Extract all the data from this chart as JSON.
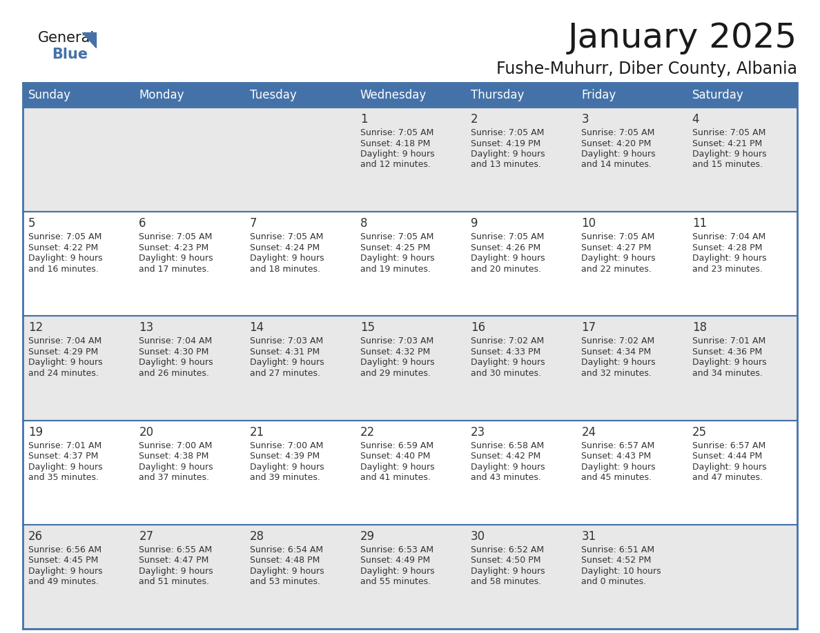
{
  "title": "January 2025",
  "subtitle": "Fushe-Muhurr, Diber County, Albania",
  "days_of_week": [
    "Sunday",
    "Monday",
    "Tuesday",
    "Wednesday",
    "Thursday",
    "Friday",
    "Saturday"
  ],
  "header_bg": "#4472a8",
  "header_text_color": "#ffffff",
  "cell_bg_gray": "#e8e8e8",
  "cell_bg_white": "#ffffff",
  "border_color": "#4472a8",
  "text_color": "#333333",
  "calendar": [
    [
      null,
      null,
      null,
      {
        "day": 1,
        "sunrise": "7:05 AM",
        "sunset": "4:18 PM",
        "daylight": "9 hours",
        "daylight2": "and 12 minutes."
      },
      {
        "day": 2,
        "sunrise": "7:05 AM",
        "sunset": "4:19 PM",
        "daylight": "9 hours",
        "daylight2": "and 13 minutes."
      },
      {
        "day": 3,
        "sunrise": "7:05 AM",
        "sunset": "4:20 PM",
        "daylight": "9 hours",
        "daylight2": "and 14 minutes."
      },
      {
        "day": 4,
        "sunrise": "7:05 AM",
        "sunset": "4:21 PM",
        "daylight": "9 hours",
        "daylight2": "and 15 minutes."
      }
    ],
    [
      {
        "day": 5,
        "sunrise": "7:05 AM",
        "sunset": "4:22 PM",
        "daylight": "9 hours",
        "daylight2": "and 16 minutes."
      },
      {
        "day": 6,
        "sunrise": "7:05 AM",
        "sunset": "4:23 PM",
        "daylight": "9 hours",
        "daylight2": "and 17 minutes."
      },
      {
        "day": 7,
        "sunrise": "7:05 AM",
        "sunset": "4:24 PM",
        "daylight": "9 hours",
        "daylight2": "and 18 minutes."
      },
      {
        "day": 8,
        "sunrise": "7:05 AM",
        "sunset": "4:25 PM",
        "daylight": "9 hours",
        "daylight2": "and 19 minutes."
      },
      {
        "day": 9,
        "sunrise": "7:05 AM",
        "sunset": "4:26 PM",
        "daylight": "9 hours",
        "daylight2": "and 20 minutes."
      },
      {
        "day": 10,
        "sunrise": "7:05 AM",
        "sunset": "4:27 PM",
        "daylight": "9 hours",
        "daylight2": "and 22 minutes."
      },
      {
        "day": 11,
        "sunrise": "7:04 AM",
        "sunset": "4:28 PM",
        "daylight": "9 hours",
        "daylight2": "and 23 minutes."
      }
    ],
    [
      {
        "day": 12,
        "sunrise": "7:04 AM",
        "sunset": "4:29 PM",
        "daylight": "9 hours",
        "daylight2": "and 24 minutes."
      },
      {
        "day": 13,
        "sunrise": "7:04 AM",
        "sunset": "4:30 PM",
        "daylight": "9 hours",
        "daylight2": "and 26 minutes."
      },
      {
        "day": 14,
        "sunrise": "7:03 AM",
        "sunset": "4:31 PM",
        "daylight": "9 hours",
        "daylight2": "and 27 minutes."
      },
      {
        "day": 15,
        "sunrise": "7:03 AM",
        "sunset": "4:32 PM",
        "daylight": "9 hours",
        "daylight2": "and 29 minutes."
      },
      {
        "day": 16,
        "sunrise": "7:02 AM",
        "sunset": "4:33 PM",
        "daylight": "9 hours",
        "daylight2": "and 30 minutes."
      },
      {
        "day": 17,
        "sunrise": "7:02 AM",
        "sunset": "4:34 PM",
        "daylight": "9 hours",
        "daylight2": "and 32 minutes."
      },
      {
        "day": 18,
        "sunrise": "7:01 AM",
        "sunset": "4:36 PM",
        "daylight": "9 hours",
        "daylight2": "and 34 minutes."
      }
    ],
    [
      {
        "day": 19,
        "sunrise": "7:01 AM",
        "sunset": "4:37 PM",
        "daylight": "9 hours",
        "daylight2": "and 35 minutes."
      },
      {
        "day": 20,
        "sunrise": "7:00 AM",
        "sunset": "4:38 PM",
        "daylight": "9 hours",
        "daylight2": "and 37 minutes."
      },
      {
        "day": 21,
        "sunrise": "7:00 AM",
        "sunset": "4:39 PM",
        "daylight": "9 hours",
        "daylight2": "and 39 minutes."
      },
      {
        "day": 22,
        "sunrise": "6:59 AM",
        "sunset": "4:40 PM",
        "daylight": "9 hours",
        "daylight2": "and 41 minutes."
      },
      {
        "day": 23,
        "sunrise": "6:58 AM",
        "sunset": "4:42 PM",
        "daylight": "9 hours",
        "daylight2": "and 43 minutes."
      },
      {
        "day": 24,
        "sunrise": "6:57 AM",
        "sunset": "4:43 PM",
        "daylight": "9 hours",
        "daylight2": "and 45 minutes."
      },
      {
        "day": 25,
        "sunrise": "6:57 AM",
        "sunset": "4:44 PM",
        "daylight": "9 hours",
        "daylight2": "and 47 minutes."
      }
    ],
    [
      {
        "day": 26,
        "sunrise": "6:56 AM",
        "sunset": "4:45 PM",
        "daylight": "9 hours",
        "daylight2": "and 49 minutes."
      },
      {
        "day": 27,
        "sunrise": "6:55 AM",
        "sunset": "4:47 PM",
        "daylight": "9 hours",
        "daylight2": "and 51 minutes."
      },
      {
        "day": 28,
        "sunrise": "6:54 AM",
        "sunset": "4:48 PM",
        "daylight": "9 hours",
        "daylight2": "and 53 minutes."
      },
      {
        "day": 29,
        "sunrise": "6:53 AM",
        "sunset": "4:49 PM",
        "daylight": "9 hours",
        "daylight2": "and 55 minutes."
      },
      {
        "day": 30,
        "sunrise": "6:52 AM",
        "sunset": "4:50 PM",
        "daylight": "9 hours",
        "daylight2": "and 58 minutes."
      },
      {
        "day": 31,
        "sunrise": "6:51 AM",
        "sunset": "4:52 PM",
        "daylight": "10 hours",
        "daylight2": "and 0 minutes."
      },
      null
    ]
  ],
  "logo_color_general": "#1a1a1a",
  "logo_color_blue": "#4472a8",
  "logo_triangle_color": "#4472a8",
  "title_fontsize": 36,
  "subtitle_fontsize": 17,
  "header_fontsize": 12,
  "day_num_fontsize": 12,
  "cell_text_fontsize": 9
}
